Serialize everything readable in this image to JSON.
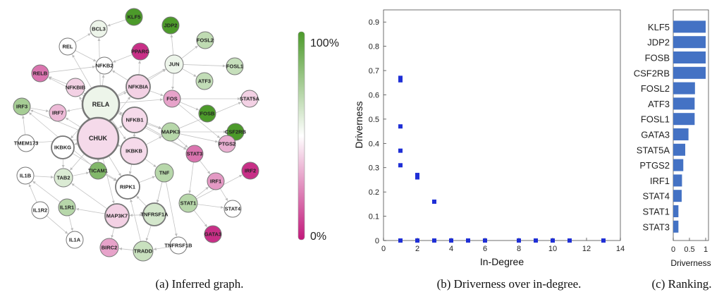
{
  "captions": {
    "a": "(a) Inferred graph.",
    "b": "(b) Driverness over in-degree.",
    "c": "(c) Ranking."
  },
  "colorbar": {
    "top_label": "100%",
    "bottom_label": "0%",
    "top_color": "#4c9a2a",
    "mid_color": "#ffffff",
    "bottom_color": "#c2187a"
  },
  "chart_data": [
    {
      "type": "network",
      "caption": "(a) Inferred graph.",
      "nodes": [
        {
          "id": "KLF5",
          "value": 1.0
        },
        {
          "id": "JDP2",
          "value": 1.0
        },
        {
          "id": "FOSL2",
          "value": 0.68
        },
        {
          "id": "FOSL1",
          "value": 0.66
        },
        {
          "id": "PPARG",
          "value": 0.05
        },
        {
          "id": "BCL3",
          "value": 0.55
        },
        {
          "id": "REL",
          "value": 0.5
        },
        {
          "id": "NFKB2",
          "value": 0.5
        },
        {
          "id": "JUN",
          "value": 0.55
        },
        {
          "id": "ATF3",
          "value": 0.67
        },
        {
          "id": "RELB",
          "value": 0.2
        },
        {
          "id": "NFKBIB",
          "value": 0.4
        },
        {
          "id": "NFKBIA",
          "value": 0.4
        },
        {
          "id": "RELA",
          "value": 0.55
        },
        {
          "id": "FOS",
          "value": 0.3
        },
        {
          "id": "STAT5A",
          "value": 0.4
        },
        {
          "id": "IRF3",
          "value": 0.75
        },
        {
          "id": "IRF7",
          "value": 0.35
        },
        {
          "id": "FOSB",
          "value": 1.0
        },
        {
          "id": "CHUK",
          "value": 0.42
        },
        {
          "id": "NFKB1",
          "value": 0.42
        },
        {
          "id": "MAPK3",
          "value": 0.7
        },
        {
          "id": "CSF2RB",
          "value": 1.0
        },
        {
          "id": "TMEM173",
          "value": 0.5
        },
        {
          "id": "IKBKG",
          "value": 0.5
        },
        {
          "id": "IKBKB",
          "value": 0.42
        },
        {
          "id": "PTGS2",
          "value": 0.33
        },
        {
          "id": "STAT3",
          "value": 0.2
        },
        {
          "id": "TICAM1",
          "value": 0.85
        },
        {
          "id": "IL1B",
          "value": 0.5
        },
        {
          "id": "TAB2",
          "value": 0.6
        },
        {
          "id": "TNF",
          "value": 0.7
        },
        {
          "id": "RIPK1",
          "value": 0.5
        },
        {
          "id": "IRF1",
          "value": 0.28
        },
        {
          "id": "IRF2",
          "value": 0.05
        },
        {
          "id": "IL1R1",
          "value": 0.7
        },
        {
          "id": "STAT1",
          "value": 0.7
        },
        {
          "id": "IL1R2",
          "value": 0.5
        },
        {
          "id": "MAP3K7",
          "value": 0.4
        },
        {
          "id": "TNFRSF1A",
          "value": 0.62
        },
        {
          "id": "STAT4",
          "value": 0.5
        },
        {
          "id": "IL1A",
          "value": 0.5
        },
        {
          "id": "BIRC2",
          "value": 0.3
        },
        {
          "id": "TRADD",
          "value": 0.65
        },
        {
          "id": "TNFRSF1B",
          "value": 0.5
        },
        {
          "id": "GATA3",
          "value": 0.05
        }
      ],
      "edges": [
        [
          "RELA",
          "CHUK"
        ],
        [
          "RELA",
          "NFKBIA"
        ],
        [
          "RELA",
          "NFKB1"
        ],
        [
          "RELA",
          "IKBKB"
        ],
        [
          "RELA",
          "NFKBIB"
        ],
        [
          "RELA",
          "REL"
        ],
        [
          "RELA",
          "NFKB2"
        ],
        [
          "RELA",
          "IRF7"
        ],
        [
          "RELA",
          "BCL3"
        ],
        [
          "RELA",
          "JUN"
        ],
        [
          "RELA",
          "FOS"
        ],
        [
          "RELA",
          "RELB"
        ],
        [
          "RELA",
          "IKBKG"
        ],
        [
          "RELA",
          "MAPK3"
        ],
        [
          "RELA",
          "STAT3"
        ],
        [
          "RELA",
          "TICAM1"
        ],
        [
          "CHUK",
          "IKBKG"
        ],
        [
          "CHUK",
          "IKBKB"
        ],
        [
          "CHUK",
          "NFKB1"
        ],
        [
          "CHUK",
          "TAB2"
        ],
        [
          "CHUK",
          "RIPK1"
        ],
        [
          "CHUK",
          "IRF7"
        ],
        [
          "CHUK",
          "IRF3"
        ],
        [
          "CHUK",
          "TMEM173"
        ],
        [
          "CHUK",
          "TICAM1"
        ],
        [
          "CHUK",
          "MAP3K7"
        ],
        [
          "CHUK",
          "NFKBIB"
        ],
        [
          "CHUK",
          "NFKBIA"
        ],
        [
          "IKBKB",
          "RIPK1"
        ],
        [
          "IKBKB",
          "TNF"
        ],
        [
          "IKBKB",
          "MAPK3"
        ],
        [
          "IKBKB",
          "NFKB1"
        ],
        [
          "IKBKG",
          "TAB2"
        ],
        [
          "IKBKG",
          "RIPK1"
        ],
        [
          "NFKB1",
          "MAPK3"
        ],
        [
          "NFKB1",
          "STAT3"
        ],
        [
          "NFKBIA",
          "FOS"
        ],
        [
          "NFKBIA",
          "JUN"
        ],
        [
          "NFKBIA",
          "PPARG"
        ],
        [
          "NFKBIA",
          "NFKB2"
        ],
        [
          "JUN",
          "FOSL1"
        ],
        [
          "JUN",
          "ATF3"
        ],
        [
          "JUN",
          "JDP2"
        ],
        [
          "JUN",
          "FOSL2"
        ],
        [
          "JUN",
          "FOS"
        ],
        [
          "FOS",
          "FOSB"
        ],
        [
          "FOS",
          "STAT5A"
        ],
        [
          "FOS",
          "PTGS2"
        ],
        [
          "MAPK3",
          "STAT3"
        ],
        [
          "MAPK3",
          "CSF2RB"
        ],
        [
          "MAPK3",
          "STAT5A"
        ],
        [
          "MAPK3",
          "PTGS2"
        ],
        [
          "STAT3",
          "IRF1"
        ],
        [
          "STAT3",
          "STAT1"
        ],
        [
          "STAT1",
          "IRF1"
        ],
        [
          "STAT1",
          "IRF2"
        ],
        [
          "STAT1",
          "STAT4"
        ],
        [
          "STAT1",
          "GATA3"
        ],
        [
          "TNF",
          "TNFRSF1A"
        ],
        [
          "TNF",
          "TNFRSF1B"
        ],
        [
          "TNFRSF1A",
          "TRADD"
        ],
        [
          "TNFRSF1A",
          "RIPK1"
        ],
        [
          "TNFRSF1A",
          "MAP3K7"
        ],
        [
          "TRADD",
          "BIRC2"
        ],
        [
          "TRADD",
          "RIPK1"
        ],
        [
          "MAP3K7",
          "TAB2"
        ],
        [
          "MAP3K7",
          "BIRC2"
        ],
        [
          "MAP3K7",
          "IL1R1"
        ],
        [
          "IL1R1",
          "IL1B"
        ],
        [
          "IL1R1",
          "IL1A"
        ],
        [
          "IL1R2",
          "IL1B"
        ],
        [
          "IL1R2",
          "IL1A"
        ],
        [
          "IL1B",
          "TAB2"
        ],
        [
          "TICAM1",
          "IRF3"
        ],
        [
          "TICAM1",
          "RIPK1"
        ],
        [
          "TMEM173",
          "IRF3"
        ],
        [
          "IRF3",
          "IRF7"
        ],
        [
          "REL",
          "BCL3"
        ],
        [
          "REL",
          "NFKB2"
        ],
        [
          "NFKBIB",
          "RELB"
        ],
        [
          "RELB",
          "NFKB2"
        ],
        [
          "KLF5",
          "BCL3"
        ],
        [
          "PPARG",
          "NFKB2"
        ],
        [
          "IRF1",
          "STAT4"
        ],
        [
          "TNF",
          "TNFRSF1A"
        ],
        [
          "RIPK1",
          "TNF"
        ],
        [
          "TAB2",
          "TICAM1"
        ],
        [
          "MAP3K7",
          "TNFRSF1A"
        ],
        [
          "TNFRSF1B",
          "TRADD"
        ]
      ]
    },
    {
      "type": "scatter",
      "caption": "(b) Driverness over in-degree.",
      "xlabel": "In-Degree",
      "ylabel": "Driverness",
      "xlim": [
        0,
        14
      ],
      "ylim": [
        0,
        0.95
      ],
      "xticks": [
        0,
        2,
        4,
        6,
        8,
        10,
        12,
        14
      ],
      "yticks": [
        0,
        0.1,
        0.2,
        0.3,
        0.4,
        0.5,
        0.6,
        0.7,
        0.8,
        0.9
      ],
      "color": "#1f2fd6",
      "points": [
        {
          "x": 1,
          "y": 0.67
        },
        {
          "x": 1,
          "y": 0.66
        },
        {
          "x": 1,
          "y": 0.47
        },
        {
          "x": 1,
          "y": 0.37
        },
        {
          "x": 1,
          "y": 0.31
        },
        {
          "x": 1,
          "y": 0
        },
        {
          "x": 2,
          "y": 0.27
        },
        {
          "x": 2,
          "y": 0.26
        },
        {
          "x": 2,
          "y": 0
        },
        {
          "x": 3,
          "y": 0.16
        },
        {
          "x": 3,
          "y": 0
        },
        {
          "x": 4,
          "y": 0
        },
        {
          "x": 5,
          "y": 0
        },
        {
          "x": 6,
          "y": 0
        },
        {
          "x": 8,
          "y": 0
        },
        {
          "x": 9,
          "y": 0
        },
        {
          "x": 10,
          "y": 0
        },
        {
          "x": 11,
          "y": 0
        },
        {
          "x": 13,
          "y": 0
        }
      ]
    },
    {
      "type": "bar",
      "orientation": "horizontal",
      "caption": "(c) Ranking.",
      "xlabel": "Driverness",
      "xlim": [
        0,
        1
      ],
      "xticks": [
        "0",
        "0.5",
        "1"
      ],
      "color": "#4472c4",
      "categories": [
        "KLF5",
        "JDP2",
        "FOSB",
        "CSF2RB",
        "FOSL2",
        "ATF3",
        "FOSL1",
        "GATA3",
        "STAT5A",
        "PTGS2",
        "IRF1",
        "STAT4",
        "STAT1",
        "STAT3"
      ],
      "values": [
        1.0,
        1.0,
        1.0,
        1.0,
        0.67,
        0.66,
        0.66,
        0.47,
        0.37,
        0.31,
        0.27,
        0.26,
        0.16,
        0.16
      ]
    }
  ]
}
